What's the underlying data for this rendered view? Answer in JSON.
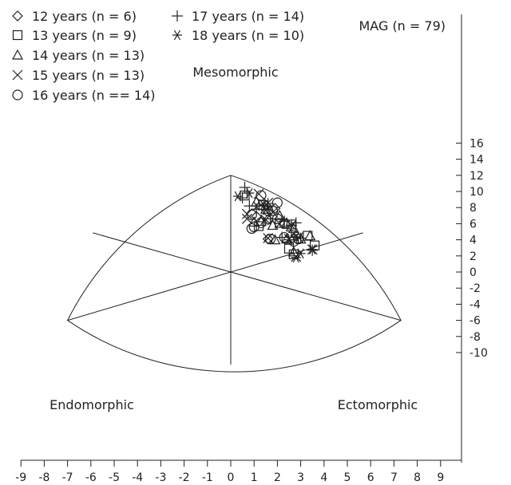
{
  "chart_data": {
    "type": "scatter",
    "chart_kind": "somatochart",
    "title": "MAG (n = 79)",
    "region_labels": {
      "top": "Mesomorphic",
      "left": "Endomorphic",
      "right": "Ectomorphic"
    },
    "xlim": [
      -10,
      10
    ],
    "ylim": [
      -12,
      16
    ],
    "x_ticks": [
      -9,
      -8,
      -7,
      -6,
      -5,
      -4,
      -3,
      -2,
      -1,
      0,
      1,
      2,
      3,
      4,
      5,
      6,
      7,
      8,
      9
    ],
    "y_ticks": [
      16,
      14,
      12,
      10,
      8,
      6,
      4,
      2,
      0,
      -2,
      -4,
      -6,
      -8,
      -10
    ],
    "legend_position": "top-left",
    "series": [
      {
        "name": "12 years (n = 6)",
        "marker": "diamond",
        "points": [
          [
            1.5,
            8.3
          ],
          [
            1.9,
            7.9
          ],
          [
            1.1,
            6.9
          ],
          [
            1.6,
            6.5
          ],
          [
            2.8,
            4.5
          ],
          [
            1.6,
            4.1
          ]
        ]
      },
      {
        "name": "13 years (n = 9)",
        "marker": "square",
        "points": [
          [
            0.6,
            9.5
          ],
          [
            1.4,
            8.3
          ],
          [
            2.1,
            6.1
          ],
          [
            2.6,
            5.9
          ],
          [
            2.5,
            2.9
          ],
          [
            3.6,
            3.3
          ],
          [
            3.3,
            4.5
          ],
          [
            2.7,
            2.2
          ],
          [
            1.2,
            5.7
          ]
        ]
      },
      {
        "name": "14 years (n = 13)",
        "marker": "triangle",
        "points": [
          [
            1.1,
            8.7
          ],
          [
            1.5,
            7.8
          ],
          [
            2.1,
            7.0
          ],
          [
            1.0,
            6.2
          ],
          [
            1.8,
            5.8
          ],
          [
            2.4,
            6.1
          ],
          [
            2.7,
            5.4
          ],
          [
            1.9,
            4.0
          ],
          [
            2.4,
            4.1
          ],
          [
            3.0,
            4.1
          ],
          [
            3.4,
            4.5
          ],
          [
            2.7,
            2.5
          ],
          [
            1.3,
            6.3
          ]
        ]
      },
      {
        "name": "15 years (n = 13)",
        "marker": "x",
        "points": [
          [
            1.2,
            9.7
          ],
          [
            1.6,
            8.6
          ],
          [
            0.7,
            7.2
          ],
          [
            1.8,
            7.4
          ],
          [
            1.5,
            6.5
          ],
          [
            0.7,
            6.6
          ],
          [
            2.1,
            6.0
          ],
          [
            2.6,
            5.8
          ],
          [
            1.6,
            4.2
          ],
          [
            2.5,
            4.1
          ],
          [
            2.9,
            4.3
          ],
          [
            3.5,
            2.8
          ],
          [
            2.8,
            1.9
          ]
        ]
      },
      {
        "name": "16 years (n == 14)",
        "marker": "circle",
        "points": [
          [
            1.3,
            9.5
          ],
          [
            2.0,
            8.6
          ],
          [
            1.6,
            7.6
          ],
          [
            0.9,
            7.1
          ],
          [
            1.8,
            7.6
          ],
          [
            1.3,
            6.1
          ],
          [
            1.0,
            5.6
          ],
          [
            0.9,
            5.4
          ],
          [
            2.0,
            6.6
          ],
          [
            2.3,
            6.0
          ],
          [
            1.7,
            4.1
          ],
          [
            2.3,
            4.3
          ],
          [
            2.9,
            4.1
          ],
          [
            2.7,
            3.8
          ]
        ]
      },
      {
        "name": "17 years (n = 14)",
        "marker": "plus",
        "points": [
          [
            0.6,
            10.5
          ],
          [
            0.7,
            9.8
          ],
          [
            0.5,
            9.2
          ],
          [
            0.8,
            8.2
          ],
          [
            1.6,
            8.5
          ],
          [
            1.1,
            7.8
          ],
          [
            1.7,
            6.6
          ],
          [
            2.3,
            6.3
          ],
          [
            2.6,
            5.8
          ],
          [
            2.8,
            6.1
          ],
          [
            2.6,
            5.1
          ],
          [
            2.2,
            4.3
          ],
          [
            3.0,
            4.2
          ],
          [
            3.5,
            2.7
          ]
        ]
      },
      {
        "name": "18 years (n = 10)",
        "marker": "asterisk",
        "points": [
          [
            0.3,
            9.4
          ],
          [
            0.8,
            9.8
          ],
          [
            1.1,
            8.2
          ],
          [
            1.4,
            8.3
          ],
          [
            1.5,
            7.7
          ],
          [
            2.5,
            4.0
          ],
          [
            2.8,
            4.3
          ],
          [
            3.5,
            2.8
          ],
          [
            3.0,
            2.3
          ],
          [
            2.8,
            1.8
          ]
        ]
      }
    ]
  }
}
